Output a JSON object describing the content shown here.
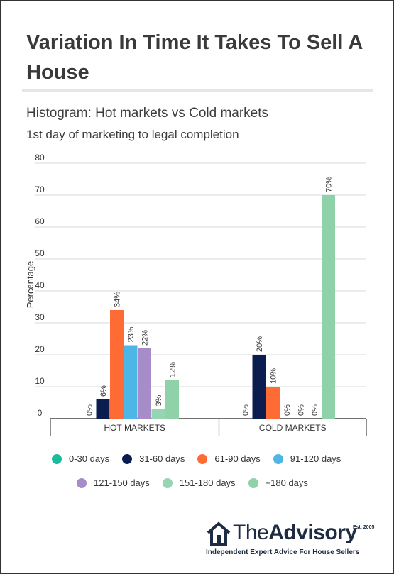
{
  "page": {
    "title": "Variation In Time It Takes To Sell A House",
    "subtitle": "Histogram: Hot markets vs Cold markets",
    "subtitle2": "1st day of marketing to legal completion"
  },
  "chart_data": {
    "type": "bar",
    "categories": [
      "HOT MARKETS",
      "COLD MARKETS"
    ],
    "ylabel": "Percentage",
    "xlabel": "",
    "ylim": [
      0,
      80
    ],
    "yticks": [
      0,
      10,
      20,
      30,
      40,
      50,
      60,
      70,
      80
    ],
    "grid": true,
    "legend_position": "bottom",
    "series": [
      {
        "name": "0-30 days",
        "color": "#1abc9c",
        "values": [
          0,
          0
        ],
        "labels": [
          "0%",
          "0%"
        ]
      },
      {
        "name": "31-60 days",
        "color": "#0b1d4f",
        "values": [
          6,
          20
        ],
        "labels": [
          "6%",
          "20%"
        ]
      },
      {
        "name": "61-90 days",
        "color": "#ff6b35",
        "values": [
          34,
          10
        ],
        "labels": [
          "34%",
          "10%"
        ]
      },
      {
        "name": "91-120 days",
        "color": "#4db6e6",
        "values": [
          23,
          0
        ],
        "labels": [
          "23%",
          "0%"
        ]
      },
      {
        "name": "121-150 days",
        "color": "#a68cc9",
        "values": [
          22,
          0
        ],
        "labels": [
          "22%",
          "0%"
        ]
      },
      {
        "name": "151-180 days",
        "color": "#95d5b2",
        "values": [
          3,
          0
        ],
        "labels": [
          "3%",
          "0%"
        ]
      },
      {
        "name": "+180 days",
        "color": "#8fd1a8",
        "values": [
          12,
          70
        ],
        "labels": [
          "12%",
          "70%"
        ]
      }
    ]
  },
  "footer": {
    "brand_light": "The",
    "brand_bold": "Advisory",
    "est": "Est. 2005",
    "tagline": "Independent Expert Advice For House Sellers",
    "house_icon": "house-icon"
  }
}
